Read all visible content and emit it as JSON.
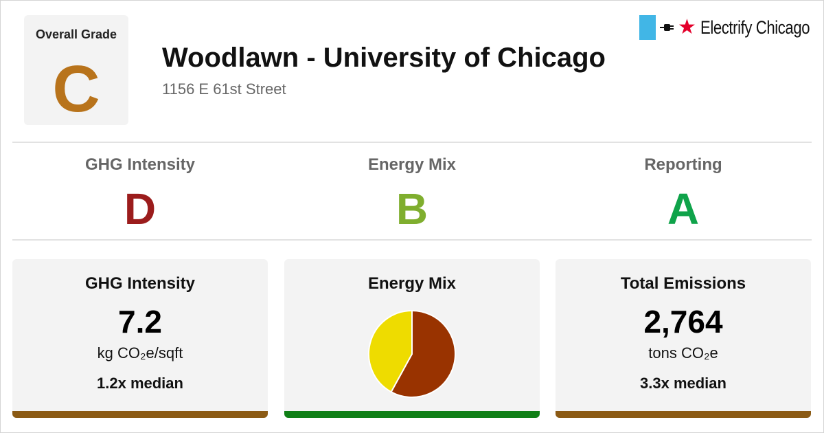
{
  "overall": {
    "label": "Overall Grade",
    "grade": "C",
    "grade_color": "#b8731b"
  },
  "building": {
    "name": "Woodlawn - University of Chicago",
    "address": "1156 E 61st Street"
  },
  "brand": {
    "name": "Electrify Chicago",
    "flag_color": "#41b6e6",
    "star_color": "#e4002b",
    "icons": [
      "plug-icon",
      "star-icon"
    ]
  },
  "subgrades": [
    {
      "title": "GHG Intensity",
      "grade": "D",
      "color": "#9b1c1c"
    },
    {
      "title": "Energy Mix",
      "grade": "B",
      "color": "#7fae2e"
    },
    {
      "title": "Reporting",
      "grade": "A",
      "color": "#0fa34a"
    }
  ],
  "cards": {
    "ghg_intensity": {
      "title": "GHG Intensity",
      "value": "7.2",
      "unit": "kg CO₂e/sqft",
      "median": "1.2x median",
      "bar_color": "#8b5a14"
    },
    "energy_mix": {
      "title": "Energy Mix",
      "bar_color": "#0f7f16"
    },
    "total_emissions": {
      "title": "Total Emissions",
      "value": "2,764",
      "unit": "tons CO₂e",
      "median": "3.3x median",
      "bar_color": "#8b5a14"
    }
  },
  "chart_data": {
    "type": "pie",
    "slices": [
      {
        "value": 58,
        "color": "#993300"
      },
      {
        "value": 42,
        "color": "#eedc00"
      }
    ],
    "start": "12 o'clock, clockwise"
  }
}
